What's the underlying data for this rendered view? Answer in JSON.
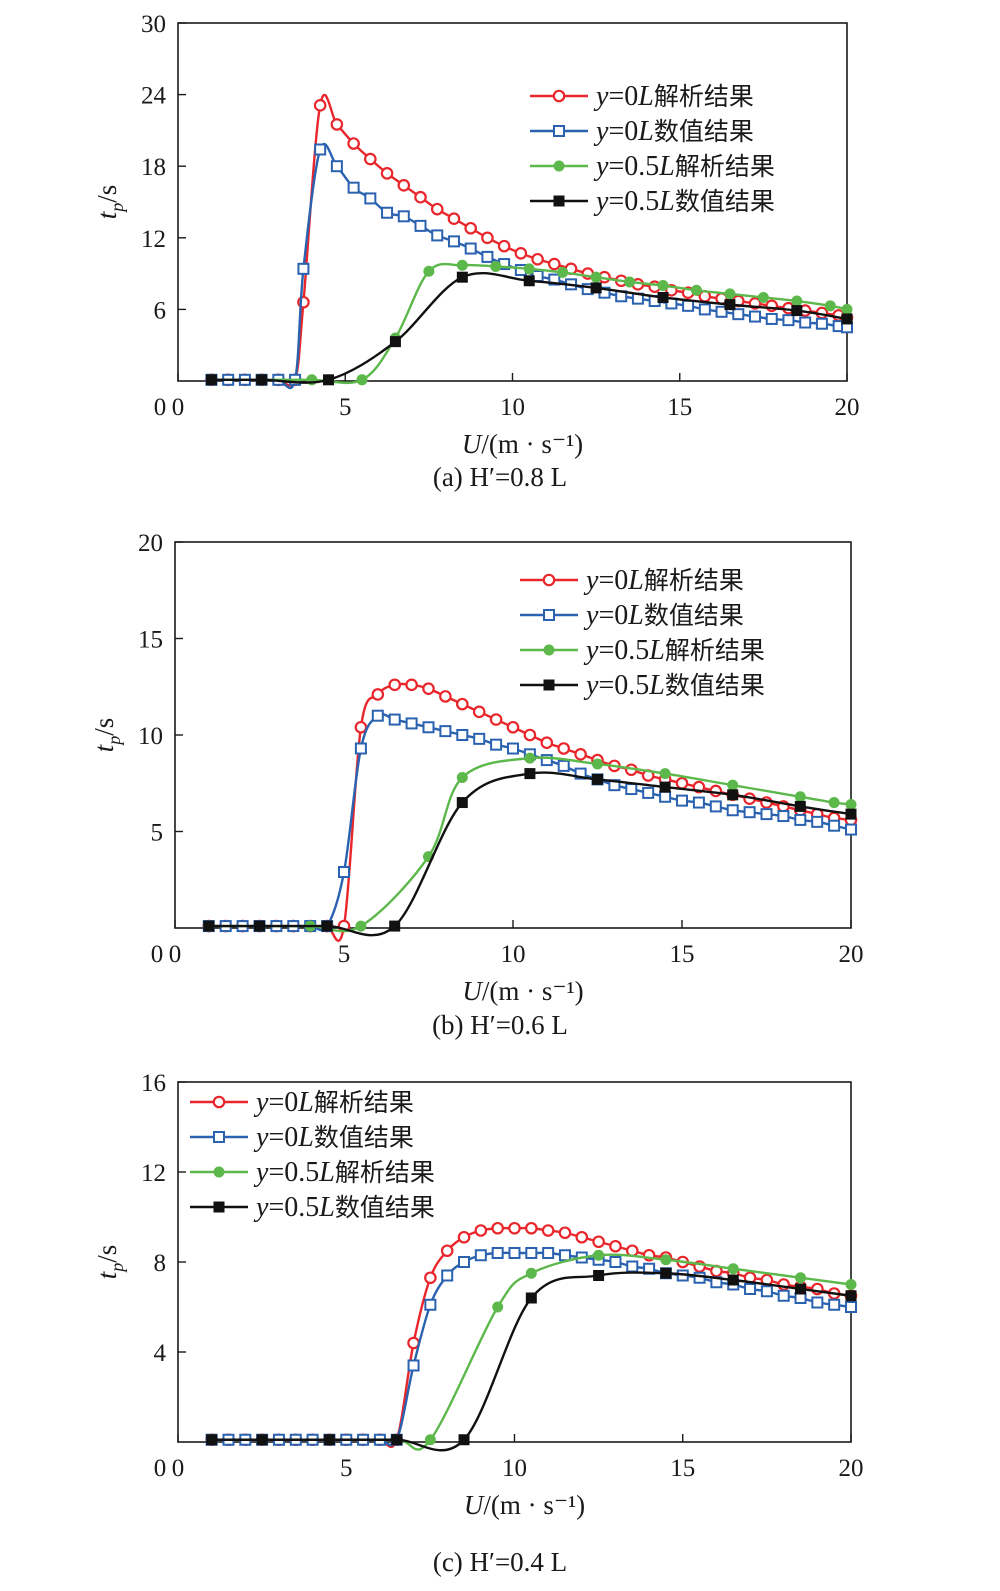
{
  "chart_data": [
    {
      "type": "line",
      "caption": "(a) H′=0.8 L",
      "xlabel": "U/(m·s⁻¹)",
      "ylabel": "tp/s",
      "xlim": [
        0,
        20
      ],
      "ylim": [
        0,
        30
      ],
      "xticks": [
        0,
        5,
        10,
        15,
        20
      ],
      "yticks": [
        6,
        12,
        18,
        24,
        30
      ],
      "legend_position": "top-right",
      "series": [
        {
          "name": "y=0L解析结果",
          "color": "#e8262b",
          "marker": "open-circle",
          "x": [
            1.0,
            1.5,
            2.0,
            2.5,
            3.0,
            3.5,
            3.75,
            4.25,
            4.75,
            5.25,
            5.75,
            6.25,
            6.75,
            7.25,
            7.75,
            8.25,
            8.75,
            9.25,
            9.75,
            10.25,
            10.75,
            11.25,
            11.75,
            12.25,
            12.75,
            13.25,
            13.75,
            14.25,
            14.75,
            15.25,
            15.75,
            16.25,
            16.75,
            17.25,
            17.75,
            18.25,
            18.75,
            19.25,
            19.75,
            20.0
          ],
          "y": [
            0.1,
            0.1,
            0.1,
            0.1,
            0.1,
            0.1,
            6.6,
            23.1,
            21.5,
            19.9,
            18.6,
            17.4,
            16.4,
            15.4,
            14.4,
            13.6,
            12.8,
            12.0,
            11.3,
            10.7,
            10.2,
            9.8,
            9.4,
            9.0,
            8.7,
            8.4,
            8.1,
            7.9,
            7.6,
            7.4,
            7.1,
            6.9,
            6.7,
            6.5,
            6.3,
            6.1,
            5.9,
            5.7,
            5.5,
            5.3
          ]
        },
        {
          "name": "y=0L数值结果",
          "color": "#2a62b0",
          "marker": "open-square",
          "x": [
            1.0,
            1.5,
            2.0,
            2.5,
            3.0,
            3.5,
            3.75,
            4.25,
            4.75,
            5.25,
            5.75,
            6.25,
            6.75,
            7.25,
            7.75,
            8.25,
            8.75,
            9.25,
            9.75,
            10.25,
            10.75,
            11.25,
            11.75,
            12.25,
            12.75,
            13.25,
            13.75,
            14.25,
            14.75,
            15.25,
            15.75,
            16.25,
            16.75,
            17.25,
            17.75,
            18.25,
            18.75,
            19.25,
            19.75,
            20.0
          ],
          "y": [
            0.1,
            0.1,
            0.1,
            0.1,
            0.1,
            0.1,
            9.4,
            19.4,
            18.0,
            16.2,
            15.3,
            14.1,
            13.8,
            13.0,
            12.2,
            11.7,
            11.1,
            10.4,
            9.8,
            9.3,
            8.8,
            8.5,
            8.1,
            7.7,
            7.4,
            7.1,
            6.9,
            6.7,
            6.5,
            6.3,
            6.0,
            5.8,
            5.6,
            5.4,
            5.2,
            5.1,
            4.9,
            4.8,
            4.6,
            4.5
          ]
        },
        {
          "name": "y=0.5L解析结果",
          "color": "#5cb84a",
          "marker": "filled-circle",
          "x": [
            1.0,
            2.5,
            4.0,
            5.5,
            6.5,
            7.5,
            8.5,
            9.5,
            10.5,
            11.5,
            12.5,
            13.5,
            14.5,
            15.5,
            16.5,
            17.5,
            18.5,
            19.5,
            20.0
          ],
          "y": [
            0.1,
            0.1,
            0.1,
            0.1,
            3.6,
            9.2,
            9.7,
            9.6,
            9.4,
            9.1,
            8.7,
            8.3,
            8.0,
            7.6,
            7.3,
            7.0,
            6.7,
            6.3,
            6.0
          ]
        },
        {
          "name": "y=0.5L数值结果",
          "color": "#111111",
          "marker": "filled-square",
          "x": [
            1.0,
            2.5,
            4.5,
            6.5,
            8.5,
            10.5,
            12.5,
            14.5,
            16.5,
            18.5,
            20.0
          ],
          "y": [
            0.1,
            0.1,
            0.1,
            3.3,
            8.7,
            8.4,
            7.8,
            7.0,
            6.4,
            5.9,
            5.2
          ]
        }
      ]
    },
    {
      "type": "line",
      "caption": "(b) H′=0.6 L",
      "xlabel": "U/(m·s⁻¹)",
      "ylabel": "tp/s",
      "xlim": [
        0,
        20
      ],
      "ylim": [
        0,
        20
      ],
      "xticks": [
        0,
        5,
        10,
        15,
        20
      ],
      "yticks": [
        5,
        10,
        15,
        20
      ],
      "legend_position": "top-right",
      "series": [
        {
          "name": "y=0L解析结果",
          "color": "#e8262b",
          "marker": "open-circle",
          "x": [
            1.0,
            1.5,
            2.0,
            2.5,
            3.0,
            3.5,
            4.0,
            4.5,
            5.0,
            5.5,
            6.0,
            6.5,
            7.0,
            7.5,
            8.0,
            8.5,
            9.0,
            9.5,
            10.0,
            10.5,
            11.0,
            11.5,
            12.0,
            12.5,
            13.0,
            13.5,
            14.0,
            14.5,
            15.0,
            15.5,
            16.0,
            16.5,
            17.0,
            17.5,
            18.0,
            18.5,
            19.0,
            19.5,
            20.0
          ],
          "y": [
            0.1,
            0.1,
            0.1,
            0.1,
            0.1,
            0.1,
            0.1,
            0.1,
            0.1,
            10.4,
            12.1,
            12.6,
            12.6,
            12.4,
            12.0,
            11.6,
            11.2,
            10.8,
            10.4,
            10.0,
            9.6,
            9.3,
            9.0,
            8.7,
            8.4,
            8.2,
            7.9,
            7.7,
            7.5,
            7.3,
            7.1,
            6.9,
            6.7,
            6.5,
            6.3,
            6.1,
            5.9,
            5.7,
            5.6
          ]
        },
        {
          "name": "y=0L数值结果",
          "color": "#2a62b0",
          "marker": "open-square",
          "x": [
            1.0,
            1.5,
            2.0,
            2.5,
            3.0,
            3.5,
            4.0,
            4.5,
            5.0,
            5.5,
            6.0,
            6.5,
            7.0,
            7.5,
            8.0,
            8.5,
            9.0,
            9.5,
            10.0,
            10.5,
            11.0,
            11.5,
            12.0,
            12.5,
            13.0,
            13.5,
            14.0,
            14.5,
            15.0,
            15.5,
            16.0,
            16.5,
            17.0,
            17.5,
            18.0,
            18.5,
            19.0,
            19.5,
            20.0
          ],
          "y": [
            0.1,
            0.1,
            0.1,
            0.1,
            0.1,
            0.1,
            0.1,
            0.1,
            2.9,
            9.3,
            11.0,
            10.8,
            10.6,
            10.4,
            10.2,
            10.0,
            9.8,
            9.5,
            9.3,
            9.0,
            8.7,
            8.4,
            8.0,
            7.7,
            7.4,
            7.2,
            7.0,
            6.8,
            6.6,
            6.5,
            6.3,
            6.1,
            6.0,
            5.9,
            5.8,
            5.6,
            5.5,
            5.3,
            5.1
          ]
        },
        {
          "name": "y=0.5L解析结果",
          "color": "#5cb84a",
          "marker": "filled-circle",
          "x": [
            1.0,
            2.5,
            4.0,
            5.5,
            7.5,
            8.5,
            10.5,
            12.5,
            14.5,
            16.5,
            18.5,
            19.5,
            20.0
          ],
          "y": [
            0.1,
            0.1,
            0.1,
            0.1,
            3.7,
            7.8,
            8.8,
            8.5,
            8.0,
            7.4,
            6.8,
            6.5,
            6.4
          ]
        },
        {
          "name": "y=0.5L数值结果",
          "color": "#111111",
          "marker": "filled-square",
          "x": [
            1.0,
            2.5,
            4.5,
            6.5,
            8.5,
            10.5,
            12.5,
            14.5,
            16.5,
            18.5,
            20.0
          ],
          "y": [
            0.1,
            0.1,
            0.1,
            0.1,
            6.5,
            8.0,
            7.7,
            7.3,
            6.9,
            6.3,
            5.9
          ]
        }
      ]
    },
    {
      "type": "line",
      "caption": "(c) H′=0.4 L",
      "xlabel": "U/(m·s⁻¹)",
      "ylabel": "tp/s",
      "xlim": [
        0,
        20
      ],
      "ylim": [
        0,
        16
      ],
      "xticks": [
        0,
        5,
        10,
        15,
        20
      ],
      "yticks": [
        4,
        8,
        12,
        16
      ],
      "legend_position": "top-left",
      "series": [
        {
          "name": "y=0L解析结果",
          "color": "#e8262b",
          "marker": "open-circle",
          "x": [
            1.0,
            1.5,
            2.0,
            2.5,
            3.0,
            3.5,
            4.0,
            4.5,
            5.0,
            5.5,
            6.0,
            6.5,
            7.0,
            7.5,
            8.0,
            8.5,
            9.0,
            9.5,
            10.0,
            10.5,
            11.0,
            11.5,
            12.0,
            12.5,
            13.0,
            13.5,
            14.0,
            14.5,
            15.0,
            15.5,
            16.0,
            16.5,
            17.0,
            17.5,
            18.0,
            18.5,
            19.0,
            19.5,
            20.0
          ],
          "y": [
            0.1,
            0.1,
            0.1,
            0.1,
            0.1,
            0.1,
            0.1,
            0.1,
            0.1,
            0.1,
            0.1,
            0.1,
            4.4,
            7.3,
            8.5,
            9.1,
            9.4,
            9.5,
            9.5,
            9.5,
            9.4,
            9.3,
            9.1,
            8.9,
            8.7,
            8.5,
            8.3,
            8.2,
            8.0,
            7.8,
            7.6,
            7.5,
            7.3,
            7.2,
            7.0,
            6.9,
            6.8,
            6.6,
            6.5
          ]
        },
        {
          "name": "y=0L数值结果",
          "color": "#2a62b0",
          "marker": "open-square",
          "x": [
            1.0,
            1.5,
            2.0,
            2.5,
            3.0,
            3.5,
            4.0,
            4.5,
            5.0,
            5.5,
            6.0,
            6.5,
            7.0,
            7.5,
            8.0,
            8.5,
            9.0,
            9.5,
            10.0,
            10.5,
            11.0,
            11.5,
            12.0,
            12.5,
            13.0,
            13.5,
            14.0,
            14.5,
            15.0,
            15.5,
            16.0,
            16.5,
            17.0,
            17.5,
            18.0,
            18.5,
            19.0,
            19.5,
            20.0
          ],
          "y": [
            0.1,
            0.1,
            0.1,
            0.1,
            0.1,
            0.1,
            0.1,
            0.1,
            0.1,
            0.1,
            0.1,
            0.1,
            3.4,
            6.1,
            7.4,
            8.0,
            8.3,
            8.4,
            8.4,
            8.4,
            8.4,
            8.3,
            8.2,
            8.1,
            8.0,
            7.8,
            7.7,
            7.5,
            7.4,
            7.3,
            7.1,
            7.0,
            6.8,
            6.7,
            6.5,
            6.4,
            6.2,
            6.1,
            6.0
          ]
        },
        {
          "name": "y=0.5L解析结果",
          "color": "#5cb84a",
          "marker": "filled-circle",
          "x": [
            1.0,
            2.5,
            4.5,
            6.5,
            7.5,
            9.5,
            10.5,
            12.5,
            14.5,
            16.5,
            18.5,
            20.0
          ],
          "y": [
            0.1,
            0.1,
            0.1,
            0.1,
            0.1,
            6.0,
            7.5,
            8.3,
            8.1,
            7.7,
            7.3,
            7.0
          ]
        },
        {
          "name": "y=0.5L数值结果",
          "color": "#111111",
          "marker": "filled-square",
          "x": [
            1.0,
            2.5,
            4.5,
            6.5,
            8.5,
            10.5,
            12.5,
            14.5,
            16.5,
            18.5,
            20.0
          ],
          "y": [
            0.1,
            0.1,
            0.1,
            0.1,
            0.1,
            6.4,
            7.4,
            7.5,
            7.2,
            6.8,
            6.5
          ]
        }
      ]
    }
  ]
}
